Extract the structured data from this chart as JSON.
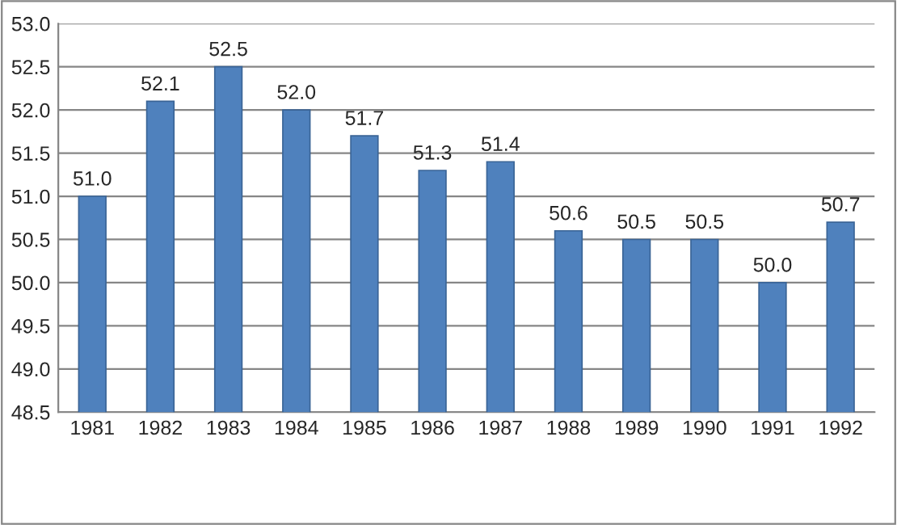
{
  "chart_data": {
    "type": "bar",
    "categories": [
      "1981",
      "1982",
      "1983",
      "1984",
      "1985",
      "1986",
      "1987",
      "1988",
      "1989",
      "1990",
      "1991",
      "1992"
    ],
    "values": [
      51.0,
      52.1,
      52.5,
      52.0,
      51.7,
      51.3,
      51.4,
      50.6,
      50.5,
      50.5,
      50.0,
      50.7
    ],
    "value_labels": [
      "51.0",
      "52.1",
      "52.5",
      "52.0",
      "51.7",
      "51.3",
      "51.4",
      "50.6",
      "50.5",
      "50.5",
      "50.0",
      "50.7"
    ],
    "color": "#4f81bd",
    "ylim": [
      48.5,
      53.0
    ],
    "yticks": [
      {
        "value": 48.5,
        "label": "48.5"
      },
      {
        "value": 49.0,
        "label": "49.0"
      },
      {
        "value": 49.5,
        "label": "49.5"
      },
      {
        "value": 50.0,
        "label": "50.0"
      },
      {
        "value": 50.5,
        "label": "50.5"
      },
      {
        "value": 51.0,
        "label": "51.0"
      },
      {
        "value": 51.5,
        "label": "51.5"
      },
      {
        "value": 52.0,
        "label": "52.0"
      },
      {
        "value": 52.5,
        "label": "52.5"
      },
      {
        "value": 53.0,
        "label": "53.0"
      }
    ],
    "grid": "y",
    "legend": false
  }
}
